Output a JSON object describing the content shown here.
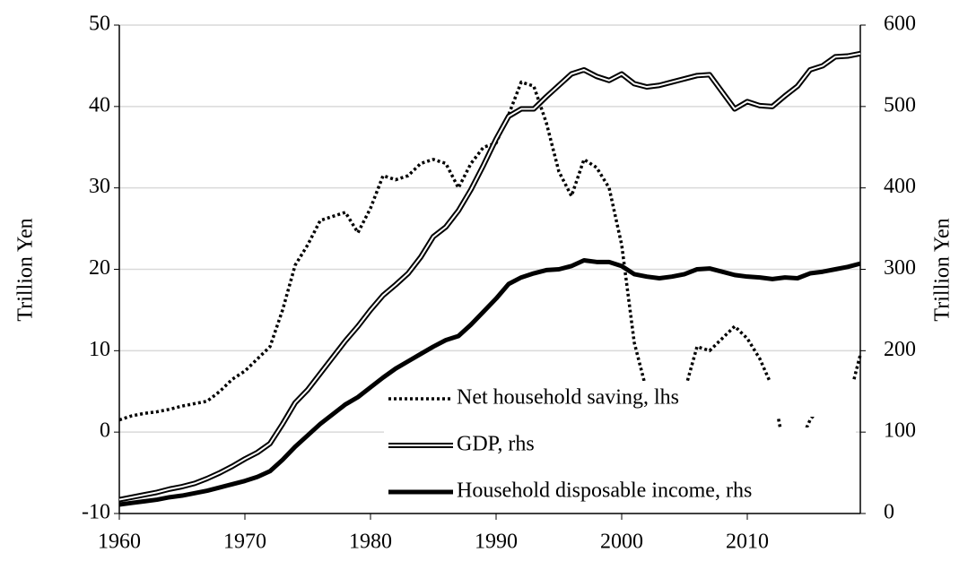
{
  "chart_data": {
    "type": "line",
    "ylabel": "Trillion Yen",
    "y2label": "Trillion Yen",
    "x": [
      1960,
      1961,
      1962,
      1963,
      1964,
      1965,
      1966,
      1967,
      1968,
      1969,
      1970,
      1971,
      1972,
      1973,
      1974,
      1975,
      1976,
      1977,
      1978,
      1979,
      1980,
      1981,
      1982,
      1983,
      1984,
      1985,
      1986,
      1987,
      1988,
      1989,
      1990,
      1991,
      1992,
      1993,
      1994,
      1995,
      1996,
      1997,
      1998,
      1999,
      2000,
      2001,
      2002,
      2003,
      2004,
      2005,
      2006,
      2007,
      2008,
      2009,
      2010,
      2011,
      2012,
      2013,
      2014,
      2015,
      2016,
      2017,
      2018,
      2019
    ],
    "xlim": [
      1960,
      2019
    ],
    "xticks": [
      1960,
      1970,
      1980,
      1990,
      2000,
      2010
    ],
    "ylim": [
      -10,
      50
    ],
    "yticks": [
      -10,
      0,
      10,
      20,
      30,
      40,
      50
    ],
    "y2lim": [
      0,
      600
    ],
    "y2ticks": [
      0,
      100,
      200,
      300,
      400,
      500,
      600
    ],
    "grid": true,
    "legend": "lower-right",
    "series": [
      {
        "name": "Net household saving, lhs",
        "color": "#000000",
        "style": "dotted",
        "values": [
          1.5,
          2.0,
          2.3,
          2.5,
          2.8,
          3.2,
          3.5,
          3.8,
          5.0,
          6.5,
          7.5,
          9.0,
          10.5,
          15,
          20.5,
          23,
          26,
          26.5,
          27,
          24.5,
          27.5,
          31.5,
          31,
          31.5,
          33,
          33.5,
          33,
          30,
          33,
          35,
          35.5,
          39,
          43,
          42.5,
          38,
          32,
          29,
          33.5,
          32.5,
          30,
          23,
          11,
          5,
          4,
          3,
          5,
          10.5,
          10,
          11.5,
          13,
          11.5,
          9,
          5.5,
          -2.5,
          -2,
          1.5,
          3.5,
          3,
          3.5,
          9.5
        ]
      },
      {
        "name": "GDP, rhs",
        "color": "#000000",
        "style": "double",
        "axis": "y2",
        "values": [
          17,
          20,
          23,
          26,
          30,
          33,
          37,
          43,
          50,
          58,
          67,
          75,
          86,
          110,
          136,
          152,
          172,
          192,
          212,
          230,
          250,
          268,
          281,
          295,
          315,
          340,
          352,
          372,
          398,
          428,
          460,
          488,
          497,
          497,
          512,
          526,
          540,
          545,
          537,
          532,
          540,
          528,
          524,
          526,
          530,
          534,
          538,
          539,
          518,
          497,
          506,
          501,
          500,
          513,
          525,
          545,
          550,
          561,
          562,
          565
        ]
      },
      {
        "name": "Household disposable income, rhs",
        "color": "#000000",
        "style": "solid",
        "axis": "y2",
        "values": [
          11,
          13,
          15,
          17,
          20,
          22,
          25,
          28,
          32,
          36,
          40,
          45,
          52,
          66,
          82,
          96,
          110,
          122,
          134,
          143,
          155,
          167,
          178,
          187,
          196,
          205,
          213,
          218,
          232,
          248,
          264,
          282,
          290,
          295,
          299,
          300,
          304,
          311,
          309,
          309,
          304,
          294,
          291,
          289,
          291,
          294,
          300,
          301,
          297,
          293,
          291,
          290,
          288,
          290,
          289,
          295,
          297,
          300,
          303,
          307
        ]
      }
    ]
  }
}
